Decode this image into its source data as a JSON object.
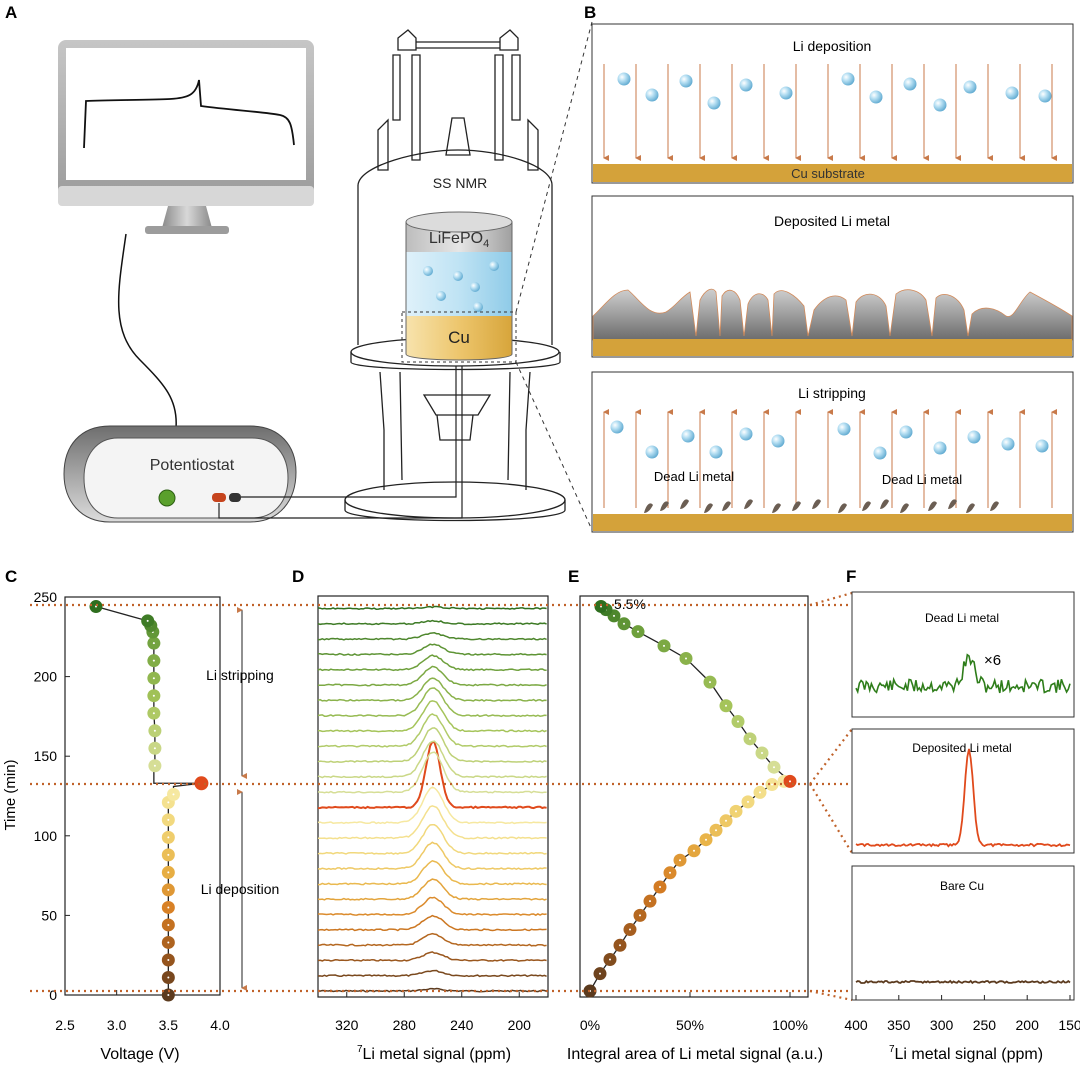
{
  "panel_letters": {
    "A": "A",
    "B": "B",
    "C": "C",
    "D": "D",
    "E": "E",
    "F": "F"
  },
  "panel_a": {
    "potentiostat_label": "Potentiostat",
    "nmr_label": "SS NMR",
    "cathode_label": "LiFePO",
    "cathode_subscript": "4",
    "anode_label": "Cu",
    "ion_label": "Li+",
    "colors": {
      "lfp": "#a9a9a9",
      "electrolyte": "#a9d8ef",
      "cu": "#e2b64e"
    }
  },
  "panel_b": {
    "top": {
      "title": "Li deposition",
      "substrate": "Cu substrate"
    },
    "middle": {
      "title": "Deposited Li metal"
    },
    "bottom": {
      "title": "Li stripping",
      "dead_left": "Dead Li metal",
      "dead_right": "Dead Li metal"
    },
    "colors": {
      "arrow": "#c87a4a",
      "substrate": "#d4a23a",
      "ion": "#7cc4e8"
    }
  },
  "panel_c": {
    "ylabel": "Time (min)",
    "xlabel": "Voltage (V)",
    "xticks": [
      "2.5",
      "3.0",
      "3.5",
      "4.0"
    ],
    "yticks": [
      "0",
      "50",
      "100",
      "150",
      "200",
      "250"
    ],
    "stripping_label": "Li stripping",
    "deposition_label": "Li deposition"
  },
  "panel_d": {
    "xlabel_sup": "7",
    "xlabel": "Li metal signal (ppm)",
    "xticks": [
      "320",
      "280",
      "240",
      "200"
    ]
  },
  "panel_e": {
    "xlabel": "Integral area of Li metal signal (a.u.)",
    "xticks": [
      "0%",
      "50%",
      "100%"
    ],
    "annotation": "5.5%"
  },
  "panel_f": {
    "top_title": "Dead Li metal",
    "top_scale": "×6",
    "middle_title": "Deposited Li metal",
    "bottom_title": "Bare Cu",
    "xlabel_sup": "7",
    "xlabel": "Li metal signal (ppm)",
    "xticks": [
      "400",
      "350",
      "300",
      "250",
      "200",
      "150"
    ],
    "colors": {
      "dead": "#2e7d1a",
      "deposited": "#e04a1c",
      "bare": "#5b3a1e"
    }
  },
  "chart_data": [
    {
      "type": "scatter",
      "panel": "C",
      "xlabel": "Voltage (V)",
      "ylabel": "Time (min)",
      "xlim": [
        2.5,
        4.0
      ],
      "ylim": [
        0,
        250
      ],
      "series": [
        {
          "name": "",
          "x": [
            3.5,
            3.5,
            3.5,
            3.5,
            3.5,
            3.5,
            3.5,
            3.51,
            3.51,
            3.51,
            3.51,
            3.51,
            3.52,
            3.52,
            3.52,
            3.52,
            3.52,
            3.53,
            3.53,
            3.53,
            3.53,
            3.53,
            3.54,
            3.55,
            3.82
          ],
          "y": [
            0,
            11,
            22,
            33,
            44,
            55,
            66,
            77,
            88,
            99,
            110,
            121,
            126,
            120,
            115,
            110,
            105,
            100,
            95,
            90,
            85,
            80,
            75,
            70,
            133
          ]
        },
        {
          "name": "",
          "x": [
            3.37,
            3.37,
            3.37,
            3.36,
            3.36,
            3.36,
            3.36,
            3.36,
            3.35,
            3.33,
            3.3,
            2.8
          ],
          "y": [
            144,
            155,
            166,
            177,
            188,
            199,
            210,
            221,
            228,
            232,
            235,
            244
          ]
        }
      ]
    },
    {
      "type": "line",
      "panel": "E",
      "xlabel": "Integral area of Li metal signal (a.u.)",
      "xlim": [
        0,
        100
      ],
      "ylim": [
        0,
        250
      ],
      "series": [
        {
          "name": "",
          "x": [
            0,
            5,
            10,
            15,
            20,
            25,
            30,
            35,
            40,
            45,
            52,
            58,
            63,
            68,
            73,
            79,
            85,
            91,
            97,
            100
          ],
          "y": [
            0,
            11,
            20,
            29,
            39,
            48,
            57,
            66,
            75,
            83,
            89,
            96,
            102,
            108,
            114,
            120,
            126,
            131,
            133,
            133
          ]
        },
        {
          "name": "",
          "x": [
            100,
            92,
            86,
            80,
            74,
            68,
            60,
            48,
            37,
            24,
            17,
            12,
            8,
            5.5
          ],
          "y": [
            133,
            142,
            151,
            160,
            171,
            181,
            196,
            211,
            219,
            228,
            233,
            238,
            242,
            244
          ]
        }
      ]
    }
  ]
}
